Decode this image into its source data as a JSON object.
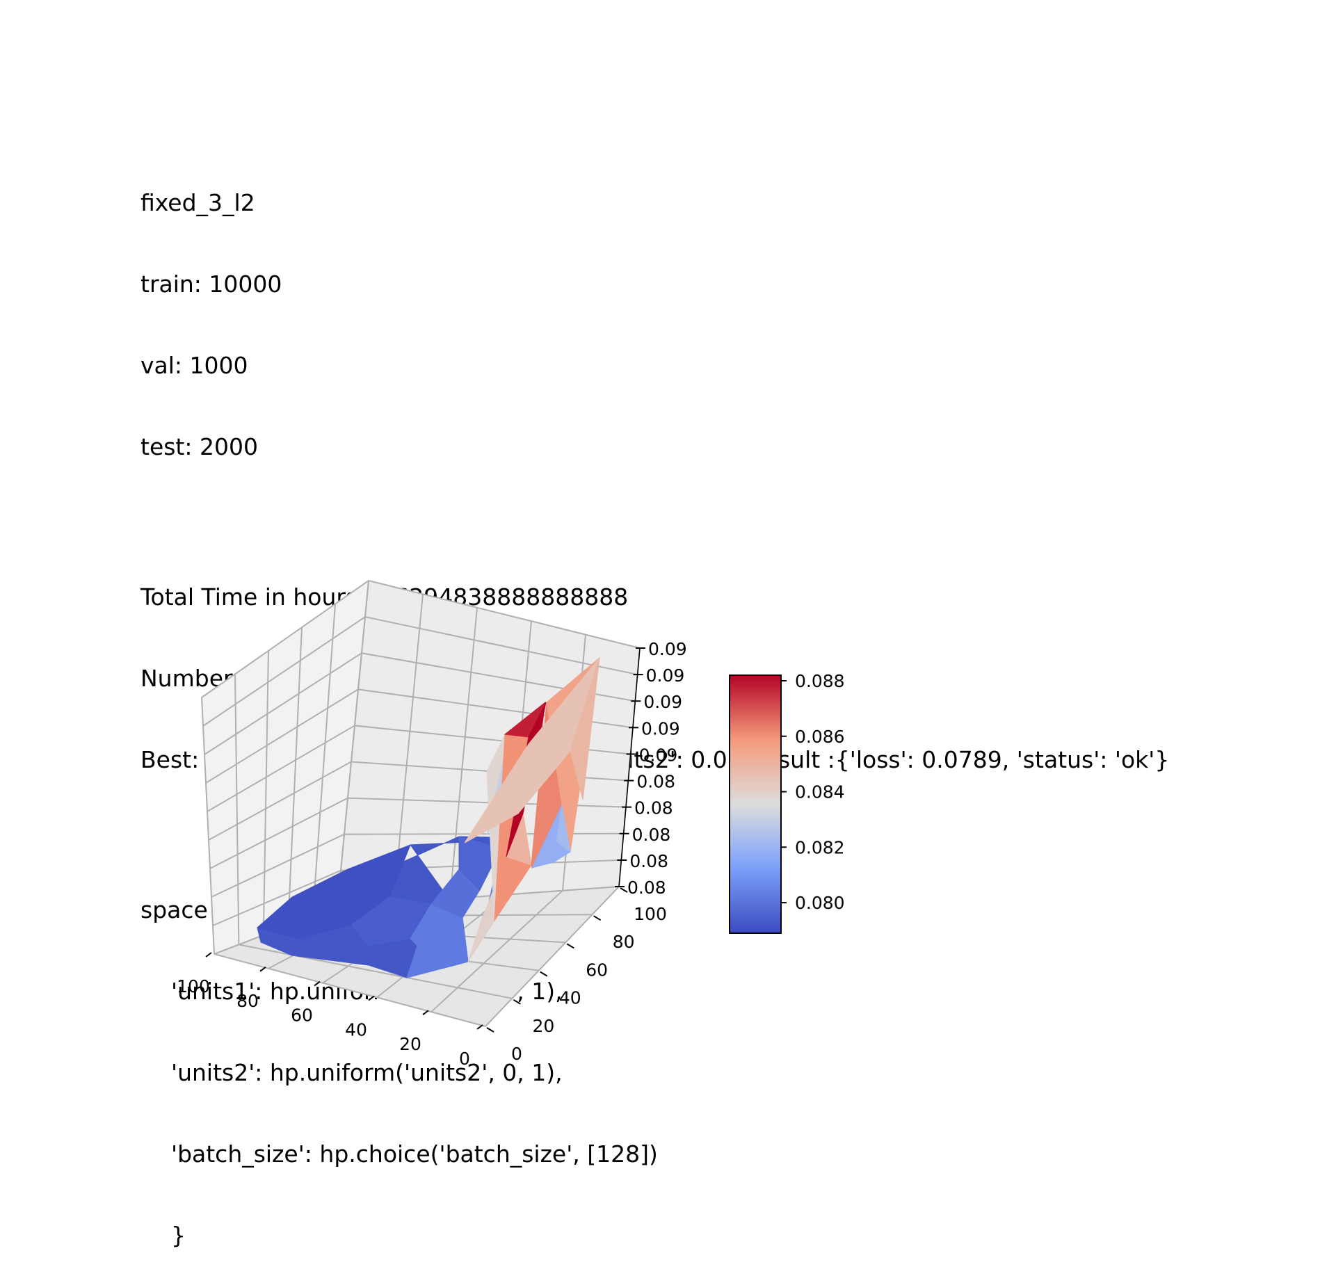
{
  "header": {
    "name": "fixed_3_l2",
    "train": "train: 10000",
    "val": "val: 1000",
    "test": "test: 2000",
    "total_time": "Total Time in hours :0.6294838888888888",
    "evaluations": "Number of Evaluations :53",
    "best": "Best: {'batch_size': 128, 'units1': 80.0, 'units2': 0.0} Result :{'loss': 0.0789, 'status': 'ok'}",
    "space_open": "space = {",
    "space_line1": "'units1': hp.uniform('units1', 0, 1),",
    "space_line2": "'units2': hp.uniform('units2', 0, 1),",
    "space_line3": "'batch_size': hp.choice('batch_size', [128])",
    "space_close": "}"
  },
  "chart_data": {
    "type": "surface3d",
    "title": "",
    "xlabel": "",
    "ylabel": "",
    "zlabel": "",
    "x_ticks": [
      "100",
      "80",
      "60",
      "40",
      "20",
      "0"
    ],
    "y_ticks": [
      "0",
      "20",
      "40",
      "60",
      "80",
      "100"
    ],
    "z_ticks": [
      "0.08",
      "0.08",
      "0.08",
      "0.08",
      "0.08",
      "0.09",
      "0.09",
      "0.09",
      "0.09",
      "0.09"
    ],
    "xlim": [
      0,
      100
    ],
    "ylim": [
      0,
      100
    ],
    "zlim": [
      0.0785,
      0.0905
    ],
    "colormap": "coolwarm",
    "colorbar": {
      "range": [
        0.0789,
        0.0882
      ],
      "ticks": [
        "0.080",
        "0.082",
        "0.084",
        "0.086",
        "0.088"
      ],
      "tick_values": [
        0.08,
        0.082,
        0.084,
        0.086,
        0.088
      ]
    },
    "grid": true,
    "surface_samples": [
      {
        "units1": 100,
        "units2": 5,
        "loss": 0.0795
      },
      {
        "units1": 95,
        "units2": 30,
        "loss": 0.0792
      },
      {
        "units1": 80,
        "units2": 50,
        "loss": 0.079
      },
      {
        "units1": 80,
        "units2": 0,
        "loss": 0.0789
      },
      {
        "units1": 60,
        "units2": 20,
        "loss": 0.0793
      },
      {
        "units1": 50,
        "units2": 60,
        "loss": 0.0797
      },
      {
        "units1": 40,
        "units2": 0,
        "loss": 0.08
      },
      {
        "units1": 40,
        "units2": 90,
        "loss": 0.0802
      },
      {
        "units1": 30,
        "units2": 30,
        "loss": 0.0805
      },
      {
        "units1": 20,
        "units2": 0,
        "loss": 0.0808
      },
      {
        "units1": 20,
        "units2": 100,
        "loss": 0.081
      },
      {
        "units1": 10,
        "units2": 0,
        "loss": 0.083
      },
      {
        "units1": 5,
        "units2": 40,
        "loss": 0.0882
      },
      {
        "units1": 5,
        "units2": 55,
        "loss": 0.0875
      },
      {
        "units1": 5,
        "units2": 70,
        "loss": 0.0855
      },
      {
        "units1": 5,
        "units2": 80,
        "loss": 0.0815
      },
      {
        "units1": 0,
        "units2": 50,
        "loss": 0.084
      },
      {
        "units1": 0,
        "units2": 95,
        "loss": 0.086
      },
      {
        "units1": 0,
        "units2": 100,
        "loss": 0.0845
      }
    ]
  }
}
